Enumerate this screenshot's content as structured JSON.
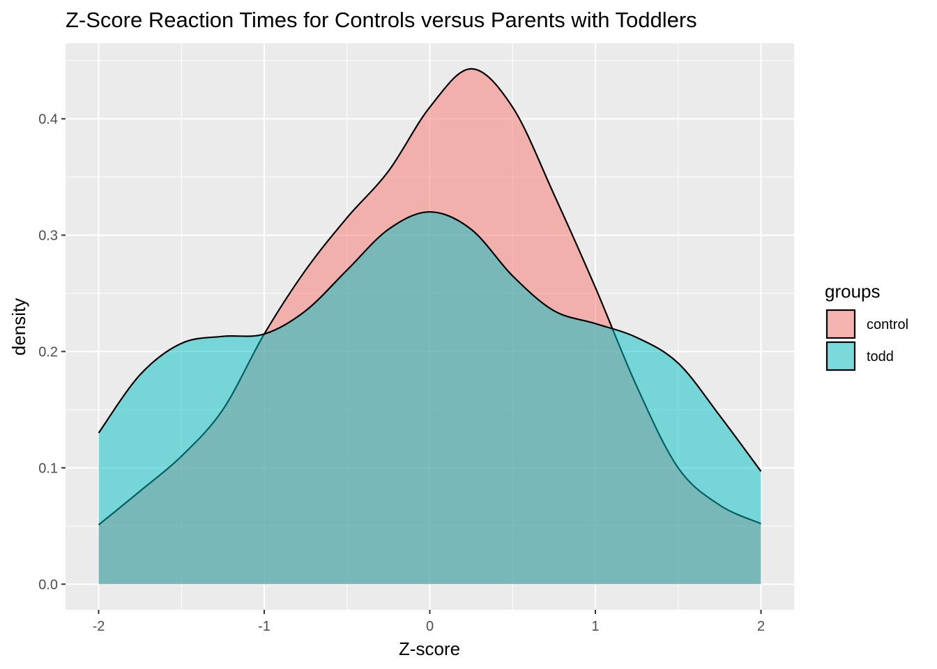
{
  "chart_data": {
    "type": "area",
    "title": "Z-Score Reaction Times for Controls versus Parents with Toddlers",
    "xlabel": "Z-score",
    "ylabel": "density",
    "xlim": [
      -2.2,
      2.2
    ],
    "ylim": [
      -0.022,
      0.465
    ],
    "x_ticks": [
      -2,
      -1,
      0,
      1,
      2
    ],
    "x_tick_labels": [
      "-2",
      "-1",
      "0",
      "1",
      "2"
    ],
    "y_ticks": [
      0.0,
      0.1,
      0.2,
      0.3,
      0.4
    ],
    "y_tick_labels": [
      "0.0",
      "0.1",
      "0.2",
      "0.3",
      "0.4"
    ],
    "grid": true,
    "legend": {
      "title": "groups",
      "position": "right"
    },
    "series": [
      {
        "name": "control",
        "color": "#F8766D",
        "x": [
          -2.0,
          -1.75,
          -1.5,
          -1.25,
          -1.0,
          -0.75,
          -0.5,
          -0.25,
          0.0,
          0.25,
          0.5,
          0.75,
          1.0,
          1.25,
          1.5,
          1.75,
          2.0
        ],
        "y": [
          0.051,
          0.08,
          0.11,
          0.15,
          0.215,
          0.27,
          0.315,
          0.355,
          0.41,
          0.443,
          0.41,
          0.335,
          0.255,
          0.17,
          0.1,
          0.068,
          0.052
        ]
      },
      {
        "name": "todd",
        "color": "#00BFC4",
        "x": [
          -2.0,
          -1.75,
          -1.5,
          -1.25,
          -1.0,
          -0.75,
          -0.5,
          -0.25,
          0.0,
          0.25,
          0.5,
          0.75,
          1.0,
          1.25,
          1.5,
          1.75,
          2.0
        ],
        "y": [
          0.13,
          0.18,
          0.207,
          0.213,
          0.215,
          0.235,
          0.27,
          0.305,
          0.32,
          0.305,
          0.265,
          0.235,
          0.224,
          0.212,
          0.19,
          0.145,
          0.097
        ]
      }
    ]
  }
}
